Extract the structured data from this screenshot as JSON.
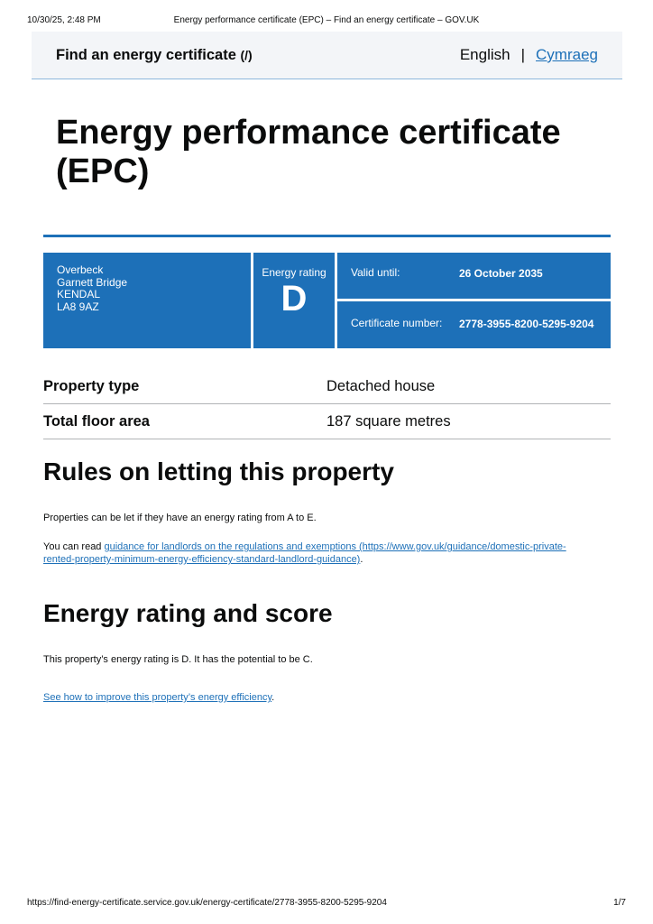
{
  "print": {
    "datetime": "10/30/25, 2:48 PM",
    "title": "Energy performance certificate (EPC) – Find an energy certificate – GOV.UK",
    "url": "https://find-energy-certificate.service.gov.uk/energy-certificate/2778-3955-8200-5295-9204",
    "page": "1/7"
  },
  "header": {
    "service_name": "Find an energy certificate",
    "service_link": "(/)",
    "lang_current": "English",
    "lang_separator": "|",
    "lang_other": "Cymraeg"
  },
  "page_title": "Energy performance certificate (EPC)",
  "summary": {
    "address": [
      "Overbeck",
      "Garnett Bridge",
      "KENDAL",
      "LA8 9AZ"
    ],
    "rating_label": "Energy rating",
    "rating": "D",
    "valid_label": "Valid until:",
    "valid_value": "26 October 2035",
    "cert_label": "Certificate number:",
    "cert_value": "2778-3955-8200-5295-9204"
  },
  "properties": [
    {
      "label": "Property type",
      "value": "Detached house"
    },
    {
      "label": "Total floor area",
      "value": "187 square metres"
    }
  ],
  "letting": {
    "heading": "Rules on letting this property",
    "p1": "Properties can be let if they have an energy rating from A to E.",
    "p2_prefix": "You can read ",
    "p2_link": "guidance for landlords on the regulations and exemptions (https://www.gov.uk/guidance/domestic-private-rented-property-minimum-energy-efficiency-standard-landlord-guidance)",
    "p2_suffix": "."
  },
  "rating_section": {
    "heading": "Energy rating and score",
    "p1": "This property’s energy rating is D. It has the potential to be C.",
    "link": "See how to improve this property’s energy efficiency",
    "link_suffix": "."
  }
}
